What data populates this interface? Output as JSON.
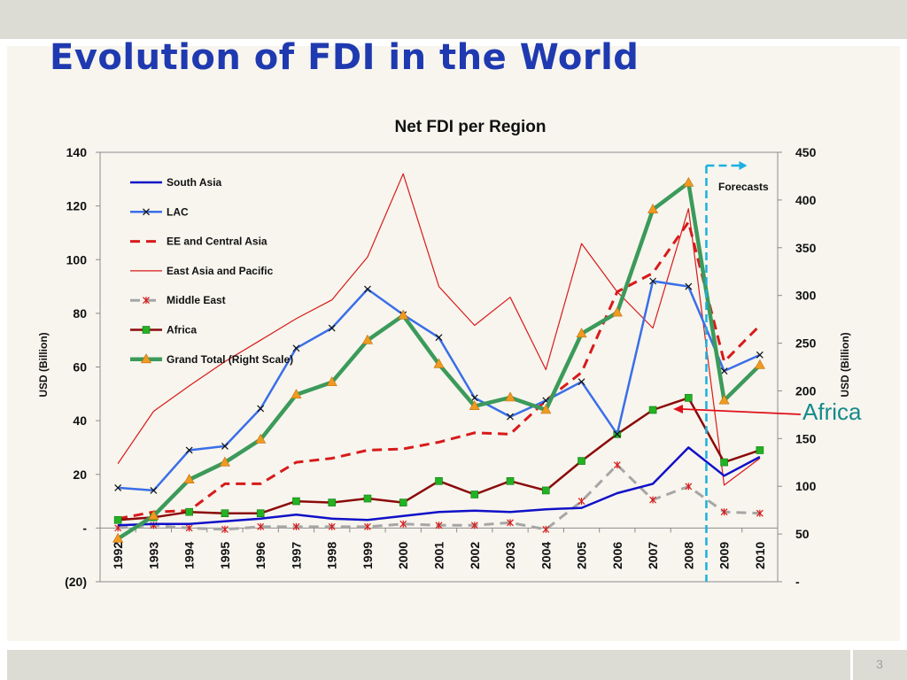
{
  "slide": {
    "title": "Evolution of FDI in the World",
    "page_number": "3"
  },
  "annotation": {
    "label": "Africa",
    "color": "#168a8c",
    "arrow_color": "#e0101a"
  },
  "chart_data": {
    "type": "line",
    "title": "Net FDI per Region",
    "ylabel": "USD (Billion)",
    "y2label": "USD (Billion)",
    "ylim": [
      -20,
      140
    ],
    "y2lim": [
      0,
      450
    ],
    "y_ticks": [
      "(20)",
      "-",
      "20",
      "40",
      "60",
      "80",
      "100",
      "120",
      "140"
    ],
    "y2_ticks": [
      "-",
      "50",
      "100",
      "150",
      "200",
      "250",
      "300",
      "350",
      "400",
      "450"
    ],
    "forecast_label": "Forecasts",
    "forecast_from": "2008.5",
    "grid": false,
    "legend_position": "top-left",
    "categories": [
      "1992",
      "1993",
      "1994",
      "1995",
      "1996",
      "1997",
      "1998",
      "1999",
      "2000",
      "2001",
      "2002",
      "2003",
      "2004",
      "2005",
      "2006",
      "2007",
      "2008",
      "2009",
      "2010"
    ],
    "series": [
      {
        "name": "South Asia",
        "axis": "left",
        "color": "#1010c8",
        "style": "solid",
        "marker": "none",
        "values": [
          1,
          1.5,
          1.5,
          2.5,
          3.5,
          5,
          3.5,
          3,
          4.5,
          6,
          6.5,
          6,
          7,
          7.5,
          13,
          16.5,
          30,
          19.5,
          26.5
        ]
      },
      {
        "name": "LAC",
        "axis": "left",
        "color": "#3a6ee8",
        "style": "solid",
        "marker": "x",
        "values": [
          15,
          14,
          29,
          30.5,
          44.5,
          67,
          74.5,
          89,
          79.5,
          71,
          48.5,
          41.5,
          47.5,
          54.5,
          35,
          92,
          90,
          58.5,
          64.5
        ]
      },
      {
        "name": "EE and Central Asia",
        "axis": "left",
        "color": "#d81a1a",
        "style": "dashed",
        "marker": "none",
        "values": [
          3.5,
          6,
          6.5,
          16.5,
          16.5,
          24.5,
          26,
          29,
          29.5,
          32,
          35.5,
          35,
          47.5,
          58,
          88,
          95,
          114,
          62,
          75.5
        ]
      },
      {
        "name": "East Asia and Pacific",
        "axis": "left",
        "color": "#d81a1a",
        "style": "thin",
        "marker": "none",
        "values": [
          24,
          43.5,
          53,
          62,
          70,
          78,
          85,
          101,
          132,
          90,
          75.5,
          86,
          59,
          106,
          88,
          74.5,
          119,
          16,
          26
        ]
      },
      {
        "name": "Middle East",
        "axis": "left",
        "color": "#a6a6a6",
        "style": "dashed",
        "marker": "star",
        "values": [
          0,
          1,
          0,
          -0.5,
          0.5,
          0.5,
          0.5,
          0.5,
          1.5,
          1,
          1,
          2,
          -0.5,
          10,
          23.5,
          10.5,
          15.5,
          6,
          5.5
        ]
      },
      {
        "name": "Africa",
        "axis": "left",
        "color": "#8b0a0a",
        "style": "solid",
        "marker": "square",
        "marker_color": "#22b322",
        "values": [
          3,
          4,
          6,
          5.5,
          5.5,
          10,
          9.5,
          11,
          9.5,
          17.5,
          12.5,
          17.5,
          14,
          25,
          35,
          44,
          48.5,
          24.5,
          29
        ]
      },
      {
        "name": "Grand Total (Right Scale)",
        "axis": "right",
        "color": "#3c9a5a",
        "style": "thick",
        "marker": "triangle",
        "marker_color": "#f09a20",
        "values": [
          45,
          69,
          107,
          125,
          149,
          196,
          209,
          253,
          279,
          228,
          184,
          193,
          180,
          260,
          282,
          390,
          418,
          190,
          227
        ]
      }
    ]
  }
}
